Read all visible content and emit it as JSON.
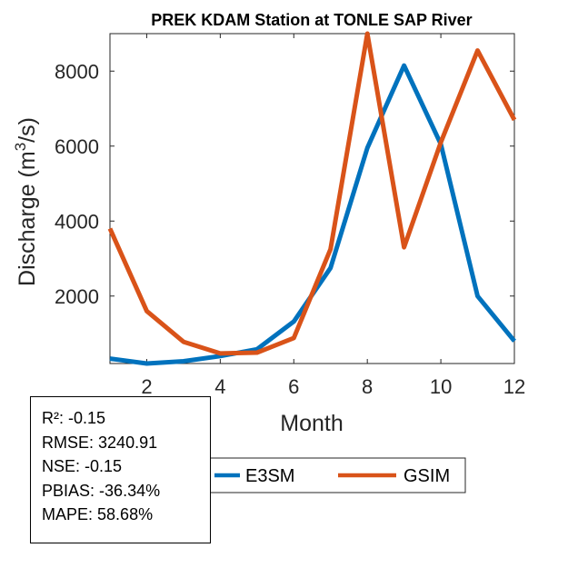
{
  "chart_data": {
    "type": "line",
    "title": "PREK KDAM  Station at  TONLE SAP  River",
    "xlabel": "Month",
    "ylabel_prefix": "Discharge (m",
    "ylabel_sup": "3",
    "ylabel_suffix": "/s)",
    "xlim": [
      1,
      12
    ],
    "ylim": [
      200,
      9000
    ],
    "xticks": [
      2,
      4,
      6,
      8,
      10,
      12
    ],
    "yticks": [
      2000,
      4000,
      6000,
      8000
    ],
    "grid": false,
    "legend_position": "bottom",
    "x": [
      1,
      2,
      3,
      4,
      5,
      6,
      7,
      8,
      9,
      10,
      11,
      12
    ],
    "series": [
      {
        "name": "E3SM",
        "color": "#0072BD",
        "values": [
          330,
          200,
          260,
          400,
          580,
          1320,
          2750,
          5950,
          8150,
          6050,
          2000,
          800
        ]
      },
      {
        "name": "GSIM",
        "color": "#D95319",
        "values": [
          3800,
          1600,
          780,
          470,
          490,
          880,
          3250,
          9000,
          3300,
          6100,
          8550,
          6700
        ]
      }
    ]
  },
  "stats": [
    {
      "label": "R²",
      "value": "-0.15"
    },
    {
      "label": "RMSE",
      "value": "3240.91"
    },
    {
      "label": "NSE",
      "value": "-0.15"
    },
    {
      "label": "PBIAS",
      "value": "-36.34%"
    },
    {
      "label": "MAPE",
      "value": "58.68%"
    }
  ]
}
